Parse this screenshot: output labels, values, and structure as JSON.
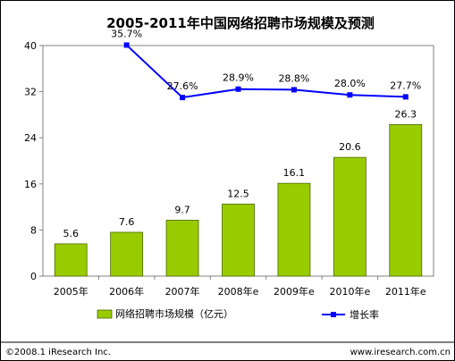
{
  "chart_data": {
    "type": "bar",
    "title": "2005-2011年中国网络招聘市场规模及预测",
    "categories": [
      "2005年",
      "2006年",
      "2007年",
      "2008年e",
      "2009年e",
      "2010年e",
      "2011年e"
    ],
    "series": [
      {
        "name": "网络招聘市场规模（亿元）",
        "type": "bar",
        "values": [
          5.6,
          7.6,
          9.7,
          12.5,
          16.1,
          20.6,
          26.3
        ],
        "value_labels": [
          "5.6",
          "7.6",
          "9.7",
          "12.5",
          "16.1",
          "20.6",
          "26.3"
        ],
        "color": "#99cc00"
      },
      {
        "name": "增长率",
        "type": "line",
        "values": [
          null,
          35.7,
          27.6,
          28.9,
          28.8,
          28.0,
          27.7
        ],
        "value_labels": [
          "",
          "35.7%",
          "27.6%",
          "28.9%",
          "28.8%",
          "28.0%",
          "27.7%"
        ],
        "color": "#0000ff"
      }
    ],
    "yticks": [
      "0",
      "8",
      "16",
      "24",
      "32",
      "40"
    ],
    "ylim": [
      0,
      40
    ],
    "grid": false,
    "legend_position": "bottom"
  },
  "footer": {
    "left": "©2008.1 iResearch Inc.",
    "right": "www.iresearch.com.cn"
  }
}
